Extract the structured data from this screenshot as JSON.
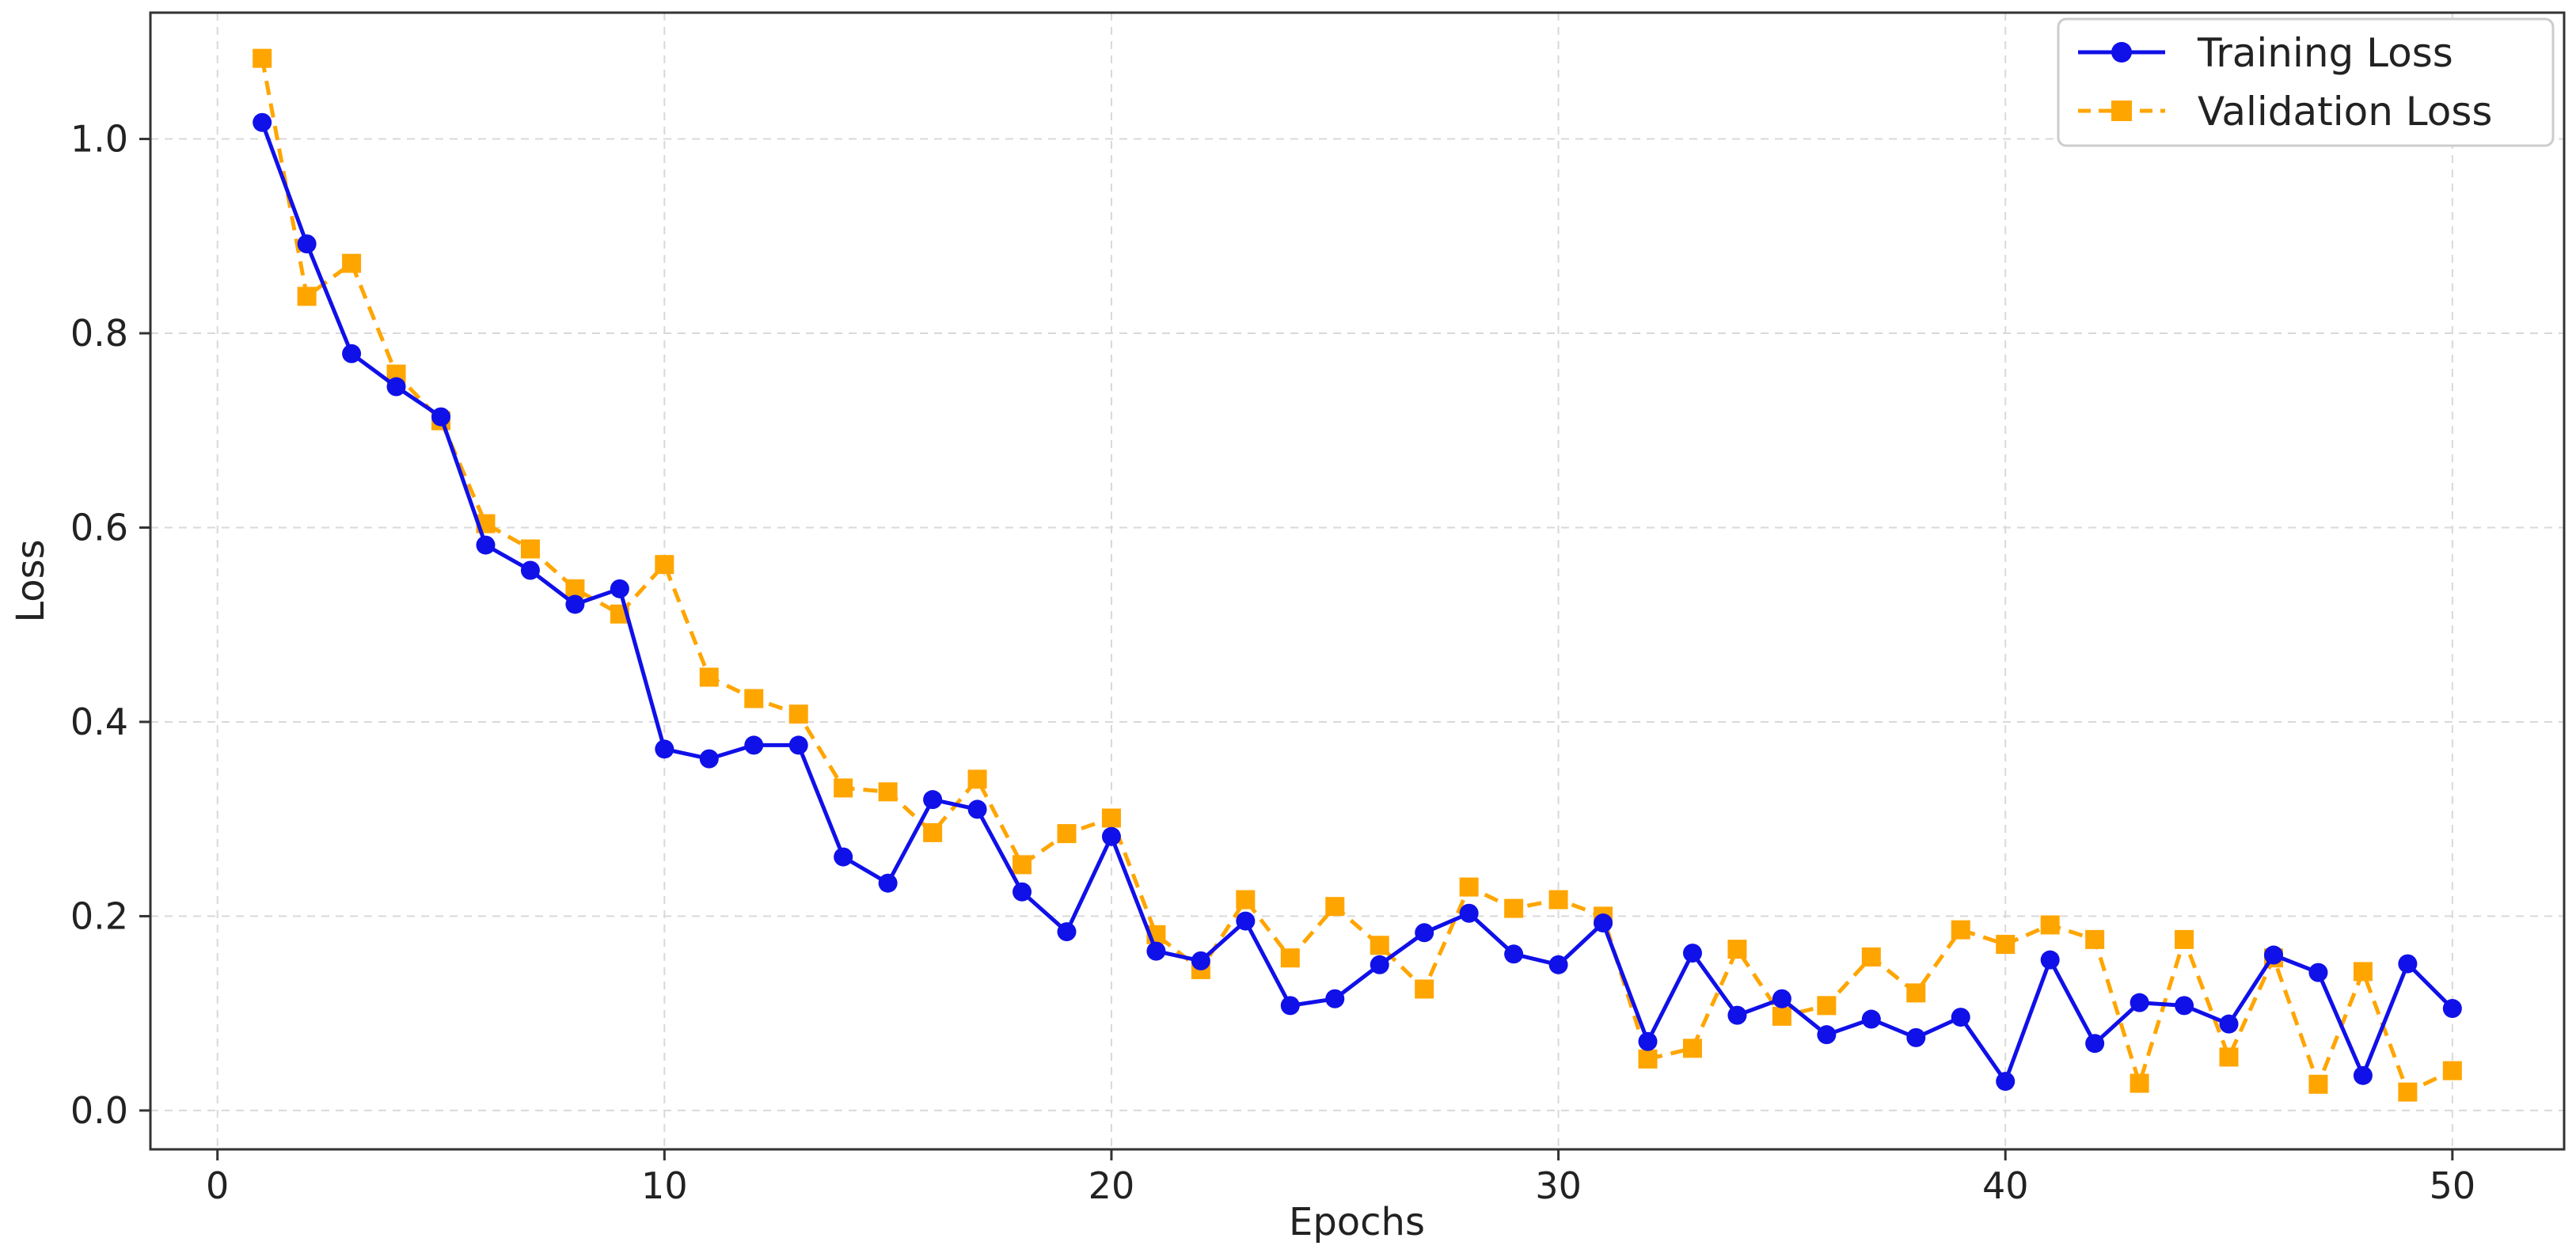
{
  "chart_data": {
    "type": "line",
    "title": "",
    "xlabel": "Epochs",
    "ylabel": "Loss",
    "xlim": [
      -1.5,
      52.5
    ],
    "ylim": [
      -0.04,
      1.13
    ],
    "xticks": [
      0,
      10,
      20,
      30,
      40,
      50
    ],
    "yticks": [
      0.0,
      0.2,
      0.4,
      0.6,
      0.8,
      1.0
    ],
    "xtick_labels": [
      "0",
      "10",
      "20",
      "30",
      "40",
      "50"
    ],
    "ytick_labels": [
      "0.0",
      "0.2",
      "0.4",
      "0.6",
      "0.8",
      "1.0"
    ],
    "grid": true,
    "legend_position": "top-right",
    "x": [
      1,
      2,
      3,
      4,
      5,
      6,
      7,
      8,
      9,
      10,
      11,
      12,
      13,
      14,
      15,
      16,
      17,
      18,
      19,
      20,
      21,
      22,
      23,
      24,
      25,
      26,
      27,
      28,
      29,
      30,
      31,
      32,
      33,
      34,
      35,
      36,
      37,
      38,
      39,
      40,
      41,
      42,
      43,
      44,
      45,
      46,
      47,
      48,
      49,
      50
    ],
    "series": [
      {
        "name": "Training Loss",
        "color": "#1010e8",
        "marker": "circle",
        "line_style": "solid",
        "values": [
          1.017,
          0.892,
          0.779,
          0.745,
          0.714,
          0.582,
          0.556,
          0.521,
          0.537,
          0.372,
          0.362,
          0.376,
          0.376,
          0.261,
          0.234,
          0.32,
          0.31,
          0.225,
          0.184,
          0.282,
          0.164,
          0.154,
          0.195,
          0.108,
          0.115,
          0.15,
          0.183,
          0.203,
          0.161,
          0.15,
          0.193,
          0.071,
          0.162,
          0.098,
          0.115,
          0.078,
          0.094,
          0.075,
          0.096,
          0.03,
          0.155,
          0.069,
          0.111,
          0.108,
          0.089,
          0.16,
          0.142,
          0.036,
          0.151,
          0.105
        ]
      },
      {
        "name": "Validation Loss",
        "color": "#ffa500",
        "marker": "square",
        "line_style": "dashed",
        "values": [
          1.083,
          0.838,
          0.872,
          0.758,
          0.71,
          0.604,
          0.578,
          0.537,
          0.511,
          0.562,
          0.446,
          0.424,
          0.408,
          0.332,
          0.328,
          0.286,
          0.341,
          0.253,
          0.285,
          0.301,
          0.181,
          0.145,
          0.217,
          0.157,
          0.21,
          0.17,
          0.125,
          0.23,
          0.208,
          0.217,
          0.2,
          0.053,
          0.064,
          0.166,
          0.097,
          0.108,
          0.158,
          0.121,
          0.186,
          0.171,
          0.191,
          0.176,
          0.028,
          0.176,
          0.055,
          0.157,
          0.027,
          0.143,
          0.019,
          0.041
        ]
      }
    ]
  }
}
